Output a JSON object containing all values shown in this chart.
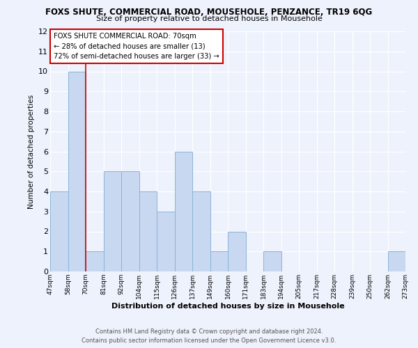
{
  "title": "FOXS SHUTE, COMMERCIAL ROAD, MOUSEHOLE, PENZANCE, TR19 6QG",
  "subtitle": "Size of property relative to detached houses in Mousehole",
  "xlabel": "Distribution of detached houses by size in Mousehole",
  "ylabel": "Number of detached properties",
  "bar_color": "#c8d8f0",
  "bar_edge_color": "#8ab4d8",
  "bins": [
    "47sqm",
    "58sqm",
    "70sqm",
    "81sqm",
    "92sqm",
    "104sqm",
    "115sqm",
    "126sqm",
    "137sqm",
    "149sqm",
    "160sqm",
    "171sqm",
    "183sqm",
    "194sqm",
    "205sqm",
    "217sqm",
    "228sqm",
    "239sqm",
    "250sqm",
    "262sqm",
    "273sqm"
  ],
  "values": [
    4,
    10,
    1,
    5,
    5,
    4,
    3,
    6,
    4,
    1,
    2,
    0,
    1,
    0,
    0,
    0,
    0,
    0,
    0,
    1
  ],
  "vline_x": 2,
  "vline_color": "#cc0000",
  "ylim": [
    0,
    12
  ],
  "yticks": [
    0,
    1,
    2,
    3,
    4,
    5,
    6,
    7,
    8,
    9,
    10,
    11,
    12
  ],
  "annotation_text": "FOXS SHUTE COMMERCIAL ROAD: 70sqm\n← 28% of detached houses are smaller (13)\n72% of semi-detached houses are larger (33) →",
  "annotation_box_color": "#ffffff",
  "annotation_box_edge": "#cc0000",
  "footer_line1": "Contains HM Land Registry data © Crown copyright and database right 2024.",
  "footer_line2": "Contains public sector information licensed under the Open Government Licence v3.0.",
  "background_color": "#eef2fc",
  "grid_color": "#ffffff"
}
